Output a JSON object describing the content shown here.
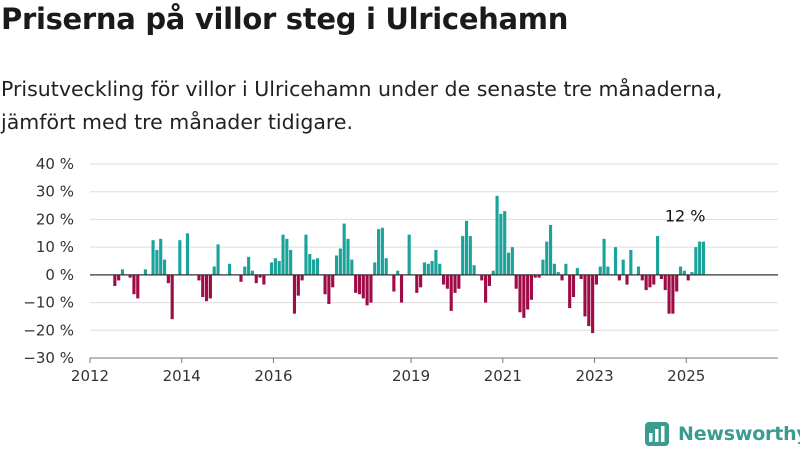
{
  "title": "Priserna på villor steg i Ulricehamn",
  "subtitle": "Prisutveckling för villor i Ulricehamn under de senaste tre månaderna, jämfört med tre månader tidigare.",
  "brand": {
    "name": "Newsworthy",
    "icon": "newsworthy-logo-icon"
  },
  "colors": {
    "positive": "#1aa39a",
    "negative": "#9e0b46",
    "zero_line": "#333333",
    "grid": "#dddddd",
    "brand": "#3a9c91"
  },
  "chart_data": {
    "type": "bar",
    "title": "",
    "xlabel": "",
    "ylabel": "",
    "ylim": [
      -30,
      40
    ],
    "grid": true,
    "legend": "none",
    "x_range": [
      "2012-01",
      "2026-12"
    ],
    "y_ticks": [
      {
        "value": 40,
        "label": "40 %"
      },
      {
        "value": 30,
        "label": "30 %"
      },
      {
        "value": 20,
        "label": "20 %"
      },
      {
        "value": 10,
        "label": "10 %"
      },
      {
        "value": 0,
        "label": "0 %"
      },
      {
        "value": -10,
        "label": "−10 %"
      },
      {
        "value": -20,
        "label": "−20 %"
      },
      {
        "value": -30,
        "label": "−30 %"
      }
    ],
    "x_ticks": [
      {
        "value": "2012-01",
        "label": "2012"
      },
      {
        "value": "2014-01",
        "label": "2014"
      },
      {
        "value": "2016-01",
        "label": "2016"
      },
      {
        "value": "2019-01",
        "label": "2019"
      },
      {
        "value": "2021-01",
        "label": "2021"
      },
      {
        "value": "2023-01",
        "label": "2023"
      },
      {
        "value": "2025-01",
        "label": "2025"
      }
    ],
    "annotation": {
      "label": "12 %",
      "at": "2025-07",
      "value": 12
    },
    "series": [
      {
        "values": [
          [
            "2012-07",
            -4
          ],
          [
            "2012-08",
            -2
          ],
          [
            "2012-09",
            2
          ],
          [
            "2012-11",
            -1
          ],
          [
            "2012-12",
            -7
          ],
          [
            "2013-01",
            -8.5
          ],
          [
            "2013-03",
            2
          ],
          [
            "2013-05",
            12.5
          ],
          [
            "2013-06",
            9
          ],
          [
            "2013-07",
            13
          ],
          [
            "2013-08",
            5.5
          ],
          [
            "2013-09",
            -3
          ],
          [
            "2013-10",
            -16
          ],
          [
            "2013-12",
            12.5
          ],
          [
            "2014-02",
            15
          ],
          [
            "2014-05",
            -2
          ],
          [
            "2014-06",
            -8
          ],
          [
            "2014-07",
            -9.5
          ],
          [
            "2014-08",
            -8.5
          ],
          [
            "2014-09",
            3
          ],
          [
            "2014-10",
            11
          ],
          [
            "2015-01",
            4
          ],
          [
            "2015-04",
            -2.5
          ],
          [
            "2015-05",
            3
          ],
          [
            "2015-06",
            6.5
          ],
          [
            "2015-07",
            1.5
          ],
          [
            "2015-08",
            -3
          ],
          [
            "2015-09",
            -1
          ],
          [
            "2015-10",
            -3.5
          ],
          [
            "2015-12",
            4.5
          ],
          [
            "2016-01",
            6
          ],
          [
            "2016-02",
            5
          ],
          [
            "2016-03",
            14.5
          ],
          [
            "2016-04",
            13
          ],
          [
            "2016-05",
            9
          ],
          [
            "2016-06",
            -14
          ],
          [
            "2016-07",
            -7.5
          ],
          [
            "2016-08",
            -2
          ],
          [
            "2016-09",
            14.5
          ],
          [
            "2016-10",
            7.5
          ],
          [
            "2016-11",
            5.5
          ],
          [
            "2016-12",
            6
          ],
          [
            "2017-02",
            -7
          ],
          [
            "2017-03",
            -10.5
          ],
          [
            "2017-04",
            -4.5
          ],
          [
            "2017-05",
            7
          ],
          [
            "2017-06",
            9.5
          ],
          [
            "2017-07",
            18.5
          ],
          [
            "2017-08",
            13
          ],
          [
            "2017-09",
            5.5
          ],
          [
            "2017-10",
            -6.5
          ],
          [
            "2017-11",
            -7
          ],
          [
            "2017-12",
            -8.5
          ],
          [
            "2018-01",
            -11
          ],
          [
            "2018-02",
            -10
          ],
          [
            "2018-03",
            4.5
          ],
          [
            "2018-04",
            16.5
          ],
          [
            "2018-05",
            17
          ],
          [
            "2018-06",
            6
          ],
          [
            "2018-08",
            -6
          ],
          [
            "2018-09",
            1.5
          ],
          [
            "2018-10",
            -10
          ],
          [
            "2018-12",
            14.5
          ],
          [
            "2019-02",
            -6.5
          ],
          [
            "2019-03",
            -4.5
          ],
          [
            "2019-04",
            4.5
          ],
          [
            "2019-05",
            4
          ],
          [
            "2019-06",
            5
          ],
          [
            "2019-07",
            9
          ],
          [
            "2019-08",
            4
          ],
          [
            "2019-09",
            -3.5
          ],
          [
            "2019-10",
            -5
          ],
          [
            "2019-11",
            -13
          ],
          [
            "2019-12",
            -6.5
          ],
          [
            "2020-01",
            -5
          ],
          [
            "2020-02",
            14
          ],
          [
            "2020-03",
            19.5
          ],
          [
            "2020-04",
            14
          ],
          [
            "2020-05",
            3.5
          ],
          [
            "2020-07",
            -2
          ],
          [
            "2020-08",
            -10
          ],
          [
            "2020-09",
            -4
          ],
          [
            "2020-10",
            1.5
          ],
          [
            "2020-11",
            28.5
          ],
          [
            "2020-12",
            22
          ],
          [
            "2021-01",
            23
          ],
          [
            "2021-02",
            8
          ],
          [
            "2021-03",
            10
          ],
          [
            "2021-04",
            -5
          ],
          [
            "2021-05",
            -13.5
          ],
          [
            "2021-06",
            -15.5
          ],
          [
            "2021-07",
            -12.5
          ],
          [
            "2021-08",
            -9
          ],
          [
            "2021-09",
            -1
          ],
          [
            "2021-10",
            -1
          ],
          [
            "2021-11",
            5.5
          ],
          [
            "2021-12",
            12
          ],
          [
            "2022-01",
            18
          ],
          [
            "2022-02",
            4
          ],
          [
            "2022-03",
            1
          ],
          [
            "2022-04",
            -2
          ],
          [
            "2022-05",
            4
          ],
          [
            "2022-06",
            -12
          ],
          [
            "2022-07",
            -8
          ],
          [
            "2022-08",
            2.5
          ],
          [
            "2022-09",
            -1.5
          ],
          [
            "2022-10",
            -15
          ],
          [
            "2022-11",
            -18.5
          ],
          [
            "2022-12",
            -21
          ],
          [
            "2023-01",
            -3.5
          ],
          [
            "2023-02",
            3
          ],
          [
            "2023-03",
            13
          ],
          [
            "2023-04",
            3
          ],
          [
            "2023-06",
            10
          ],
          [
            "2023-07",
            -2
          ],
          [
            "2023-08",
            5.5
          ],
          [
            "2023-09",
            -3.5
          ],
          [
            "2023-10",
            9
          ],
          [
            "2023-12",
            3
          ],
          [
            "2024-01",
            -2
          ],
          [
            "2024-02",
            -5.5
          ],
          [
            "2024-03",
            -4.5
          ],
          [
            "2024-04",
            -3.5
          ],
          [
            "2024-05",
            14
          ],
          [
            "2024-06",
            -1.5
          ],
          [
            "2024-07",
            -5.5
          ],
          [
            "2024-08",
            -14
          ],
          [
            "2024-09",
            -14
          ],
          [
            "2024-10",
            -6
          ],
          [
            "2024-11",
            3
          ],
          [
            "2024-12",
            1.5
          ],
          [
            "2025-01",
            -2
          ],
          [
            "2025-02",
            1
          ],
          [
            "2025-03",
            10
          ],
          [
            "2025-04",
            12
          ],
          [
            "2025-05",
            12
          ]
        ]
      }
    ]
  }
}
